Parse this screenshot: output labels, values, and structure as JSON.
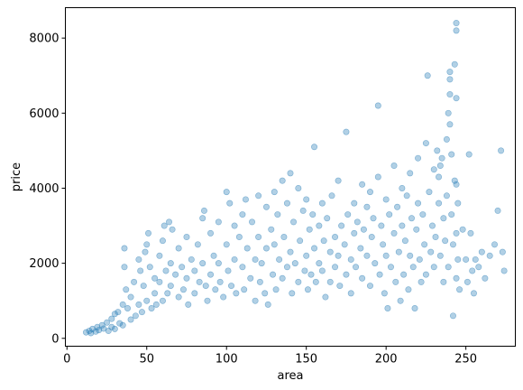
{
  "chart_data": {
    "type": "scatter",
    "title": "",
    "xlabel": "area",
    "ylabel": "price",
    "xlim": [
      -1,
      281
    ],
    "ylim": [
      -210,
      8810
    ],
    "x_ticks": [
      0,
      50,
      100,
      150,
      200,
      250
    ],
    "x_tick_labels": [
      "0",
      "50",
      "100",
      "150",
      "200",
      "250"
    ],
    "y_ticks": [
      0,
      2000,
      4000,
      6000,
      8000
    ],
    "y_tick_labels": [
      "0",
      "2000",
      "4000",
      "6000",
      "8000"
    ],
    "grid": false,
    "legend": "none",
    "marker_color": "#1f77b4",
    "marker_alpha": 0.35,
    "series": [
      {
        "points": [
          [
            12,
            160
          ],
          [
            14,
            200
          ],
          [
            15,
            140
          ],
          [
            16,
            250
          ],
          [
            18,
            180
          ],
          [
            19,
            300
          ],
          [
            20,
            220
          ],
          [
            22,
            350
          ],
          [
            23,
            260
          ],
          [
            25,
            420
          ],
          [
            26,
            200
          ],
          [
            28,
            520
          ],
          [
            28,
            300
          ],
          [
            30,
            650
          ],
          [
            30,
            250
          ],
          [
            32,
            700
          ],
          [
            33,
            400
          ],
          [
            35,
            900
          ],
          [
            35,
            350
          ],
          [
            36,
            2400
          ],
          [
            36,
            1900
          ],
          [
            37,
            1300
          ],
          [
            38,
            800
          ],
          [
            40,
            1100
          ],
          [
            40,
            500
          ],
          [
            42,
            1500
          ],
          [
            43,
            600
          ],
          [
            45,
            2100
          ],
          [
            45,
            900
          ],
          [
            46,
            1800
          ],
          [
            47,
            700
          ],
          [
            48,
            1400
          ],
          [
            49,
            2300
          ],
          [
            50,
            2500
          ],
          [
            50,
            1000
          ],
          [
            51,
            2800
          ],
          [
            52,
            1900
          ],
          [
            53,
            800
          ],
          [
            55,
            1600
          ],
          [
            55,
            1200
          ],
          [
            56,
            900
          ],
          [
            58,
            2200
          ],
          [
            58,
            1500
          ],
          [
            60,
            2600
          ],
          [
            60,
            1000
          ],
          [
            61,
            3000
          ],
          [
            62,
            1800
          ],
          [
            63,
            1200
          ],
          [
            64,
            3100
          ],
          [
            65,
            2000
          ],
          [
            65,
            1400
          ],
          [
            66,
            2900
          ],
          [
            68,
            1700
          ],
          [
            70,
            2400
          ],
          [
            70,
            1100
          ],
          [
            72,
            1900
          ],
          [
            73,
            1300
          ],
          [
            75,
            2700
          ],
          [
            75,
            1600
          ],
          [
            76,
            900
          ],
          [
            78,
            2100
          ],
          [
            80,
            1800
          ],
          [
            80,
            1200
          ],
          [
            82,
            2500
          ],
          [
            83,
            1500
          ],
          [
            85,
            3200
          ],
          [
            85,
            2000
          ],
          [
            86,
            3400
          ],
          [
            87,
            1400
          ],
          [
            88,
            1000
          ],
          [
            90,
            2800
          ],
          [
            90,
            1700
          ],
          [
            92,
            2200
          ],
          [
            93,
            1300
          ],
          [
            95,
            3100
          ],
          [
            95,
            2000
          ],
          [
            96,
            1500
          ],
          [
            98,
            1100
          ],
          [
            100,
            3900
          ],
          [
            100,
            2500
          ],
          [
            101,
            1800
          ],
          [
            102,
            3600
          ],
          [
            103,
            1400
          ],
          [
            105,
            3000
          ],
          [
            105,
            2100
          ],
          [
            106,
            1200
          ],
          [
            108,
            2700
          ],
          [
            110,
            3300
          ],
          [
            110,
            1900
          ],
          [
            111,
            1300
          ],
          [
            112,
            3700
          ],
          [
            113,
            2400
          ],
          [
            115,
            1600
          ],
          [
            116,
            3100
          ],
          [
            118,
            2100
          ],
          [
            118,
            1000
          ],
          [
            120,
            3800
          ],
          [
            120,
            2700
          ],
          [
            121,
            1500
          ],
          [
            122,
            2000
          ],
          [
            124,
            1200
          ],
          [
            125,
            3500
          ],
          [
            125,
            2400
          ],
          [
            126,
            900
          ],
          [
            128,
            2900
          ],
          [
            129,
            1700
          ],
          [
            130,
            3900
          ],
          [
            130,
            2500
          ],
          [
            131,
            1300
          ],
          [
            132,
            3300
          ],
          [
            133,
            2100
          ],
          [
            135,
            4200
          ],
          [
            135,
            1600
          ],
          [
            136,
            2700
          ],
          [
            138,
            3600
          ],
          [
            138,
            1900
          ],
          [
            140,
            4400
          ],
          [
            140,
            2300
          ],
          [
            141,
            1200
          ],
          [
            142,
            3100
          ],
          [
            143,
            2000
          ],
          [
            145,
            4000
          ],
          [
            145,
            1500
          ],
          [
            146,
            2600
          ],
          [
            148,
            3400
          ],
          [
            149,
            1800
          ],
          [
            150,
            3700
          ],
          [
            150,
            2200
          ],
          [
            151,
            1300
          ],
          [
            152,
            2900
          ],
          [
            153,
            1700
          ],
          [
            154,
            3300
          ],
          [
            155,
            5100
          ],
          [
            155,
            2400
          ],
          [
            156,
            1500
          ],
          [
            158,
            3000
          ],
          [
            158,
            2000
          ],
          [
            160,
            3600
          ],
          [
            160,
            1800
          ],
          [
            161,
            2600
          ],
          [
            162,
            1100
          ],
          [
            163,
            3200
          ],
          [
            165,
            2300
          ],
          [
            165,
            1500
          ],
          [
            166,
            3800
          ],
          [
            168,
            2700
          ],
          [
            168,
            1900
          ],
          [
            170,
            4200
          ],
          [
            170,
            2200
          ],
          [
            171,
            1400
          ],
          [
            172,
            3000
          ],
          [
            174,
            2500
          ],
          [
            175,
            5500
          ],
          [
            175,
            1700
          ],
          [
            176,
            3300
          ],
          [
            178,
            2100
          ],
          [
            178,
            1200
          ],
          [
            180,
            3600
          ],
          [
            180,
            2800
          ],
          [
            181,
            1900
          ],
          [
            182,
            3100
          ],
          [
            184,
            2400
          ],
          [
            185,
            4100
          ],
          [
            185,
            1600
          ],
          [
            186,
            2900
          ],
          [
            188,
            3500
          ],
          [
            188,
            2200
          ],
          [
            190,
            3900
          ],
          [
            190,
            1400
          ],
          [
            191,
            2700
          ],
          [
            192,
            3200
          ],
          [
            193,
            2000
          ],
          [
            195,
            4300
          ],
          [
            195,
            6200
          ],
          [
            196,
            1700
          ],
          [
            197,
            3000
          ],
          [
            198,
            2500
          ],
          [
            199,
            1200
          ],
          [
            200,
            3700
          ],
          [
            200,
            2200
          ],
          [
            201,
            800
          ],
          [
            202,
            3300
          ],
          [
            203,
            1900
          ],
          [
            205,
            4600
          ],
          [
            205,
            2800
          ],
          [
            206,
            1500
          ],
          [
            207,
            3500
          ],
          [
            208,
            2300
          ],
          [
            209,
            1000
          ],
          [
            210,
            4000
          ],
          [
            210,
            3000
          ],
          [
            211,
            1700
          ],
          [
            212,
            2600
          ],
          [
            213,
            3800
          ],
          [
            214,
            1300
          ],
          [
            215,
            4400
          ],
          [
            215,
            2200
          ],
          [
            216,
            3200
          ],
          [
            217,
            1900
          ],
          [
            218,
            800
          ],
          [
            219,
            2900
          ],
          [
            220,
            4800
          ],
          [
            220,
            3600
          ],
          [
            221,
            2100
          ],
          [
            222,
            1500
          ],
          [
            223,
            3300
          ],
          [
            224,
            2500
          ],
          [
            225,
            5200
          ],
          [
            225,
            1700
          ],
          [
            226,
            7000
          ],
          [
            227,
            3900
          ],
          [
            228,
            2300
          ],
          [
            229,
            3000
          ],
          [
            230,
            4500
          ],
          [
            230,
            1900
          ],
          [
            231,
            2700
          ],
          [
            232,
            5000
          ],
          [
            233,
            4300
          ],
          [
            233,
            3600
          ],
          [
            234,
            4600
          ],
          [
            234,
            2200
          ],
          [
            235,
            4800
          ],
          [
            236,
            3200
          ],
          [
            236,
            1500
          ],
          [
            237,
            2600
          ],
          [
            238,
            5300
          ],
          [
            238,
            3800
          ],
          [
            239,
            1900
          ],
          [
            239,
            6000
          ],
          [
            240,
            7100
          ],
          [
            240,
            6900
          ],
          [
            240,
            6500
          ],
          [
            240,
            5700
          ],
          [
            241,
            4900
          ],
          [
            241,
            3300
          ],
          [
            242,
            2500
          ],
          [
            242,
            600
          ],
          [
            243,
            7300
          ],
          [
            243,
            4200
          ],
          [
            244,
            8400
          ],
          [
            244,
            8200
          ],
          [
            244,
            6400
          ],
          [
            244,
            4100
          ],
          [
            244,
            2800
          ],
          [
            244,
            1600
          ],
          [
            245,
            3600
          ],
          [
            245,
            2100
          ],
          [
            246,
            1300
          ],
          [
            248,
            2900
          ],
          [
            250,
            2100
          ],
          [
            251,
            1500
          ],
          [
            252,
            4900
          ],
          [
            253,
            2800
          ],
          [
            254,
            1800
          ],
          [
            255,
            1200
          ],
          [
            256,
            2100
          ],
          [
            258,
            1900
          ],
          [
            260,
            2300
          ],
          [
            262,
            1600
          ],
          [
            265,
            2200
          ],
          [
            268,
            2500
          ],
          [
            270,
            3400
          ],
          [
            272,
            5000
          ],
          [
            273,
            2300
          ],
          [
            274,
            1800
          ]
        ]
      }
    ]
  }
}
